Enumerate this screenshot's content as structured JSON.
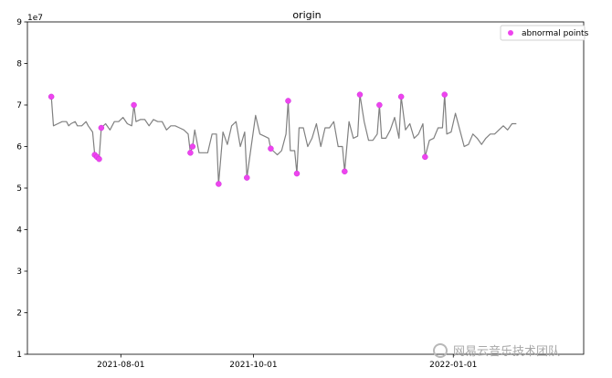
{
  "chart_data": {
    "type": "line",
    "title": "origin",
    "y_exponent_label": "1e7",
    "ylim": [
      1,
      9
    ],
    "yticks": [
      1,
      2,
      3,
      4,
      5,
      6,
      7,
      8,
      9
    ],
    "xlim": [
      "2021-06-19",
      "2022-03-02"
    ],
    "xticks": [
      "2021-08-01",
      "2021-10-01",
      "2022-01-01"
    ],
    "legend": {
      "label": "abnormal points",
      "position": "upper-right"
    },
    "colors": {
      "line": "#808080",
      "marker": "#ee44ee",
      "marker_edge": "#cc33dd"
    },
    "grid": false,
    "series": [
      {
        "values": [
          [
            "2021-06-30",
            7.2
          ],
          [
            "2021-07-01",
            6.5
          ],
          [
            "2021-07-03",
            6.55
          ],
          [
            "2021-07-05",
            6.6
          ],
          [
            "2021-07-07",
            6.6
          ],
          [
            "2021-07-08",
            6.5
          ],
          [
            "2021-07-09",
            6.55
          ],
          [
            "2021-07-11",
            6.6
          ],
          [
            "2021-07-12",
            6.5
          ],
          [
            "2021-07-14",
            6.5
          ],
          [
            "2021-07-16",
            6.6
          ],
          [
            "2021-07-17",
            6.5
          ],
          [
            "2021-07-19",
            6.35
          ],
          [
            "2021-07-20",
            5.8
          ],
          [
            "2021-07-21",
            5.75
          ],
          [
            "2021-07-22",
            5.7
          ],
          [
            "2021-07-23",
            6.45
          ],
          [
            "2021-07-25",
            6.55
          ],
          [
            "2021-07-27",
            6.4
          ],
          [
            "2021-07-29",
            6.6
          ],
          [
            "2021-07-31",
            6.6
          ],
          [
            "2021-08-02",
            6.7
          ],
          [
            "2021-08-04",
            6.55
          ],
          [
            "2021-08-06",
            6.5
          ],
          [
            "2021-08-07",
            7.0
          ],
          [
            "2021-08-08",
            6.6
          ],
          [
            "2021-08-10",
            6.65
          ],
          [
            "2021-08-12",
            6.65
          ],
          [
            "2021-08-14",
            6.5
          ],
          [
            "2021-08-16",
            6.65
          ],
          [
            "2021-08-18",
            6.6
          ],
          [
            "2021-08-20",
            6.6
          ],
          [
            "2021-08-22",
            6.4
          ],
          [
            "2021-08-24",
            6.5
          ],
          [
            "2021-08-26",
            6.5
          ],
          [
            "2021-08-28",
            6.45
          ],
          [
            "2021-08-30",
            6.4
          ],
          [
            "2021-09-01",
            6.3
          ],
          [
            "2021-09-02",
            5.85
          ],
          [
            "2021-09-03",
            6.0
          ],
          [
            "2021-09-04",
            6.4
          ],
          [
            "2021-09-06",
            5.85
          ],
          [
            "2021-09-08",
            5.85
          ],
          [
            "2021-09-10",
            5.85
          ],
          [
            "2021-09-12",
            6.3
          ],
          [
            "2021-09-14",
            6.3
          ],
          [
            "2021-09-15",
            5.1
          ],
          [
            "2021-09-17",
            6.35
          ],
          [
            "2021-09-19",
            6.05
          ],
          [
            "2021-09-21",
            6.5
          ],
          [
            "2021-09-23",
            6.6
          ],
          [
            "2021-09-25",
            6.0
          ],
          [
            "2021-09-27",
            6.35
          ],
          [
            "2021-09-28",
            5.25
          ],
          [
            "2021-09-30",
            6.0
          ],
          [
            "2021-10-02",
            6.75
          ],
          [
            "2021-10-04",
            6.3
          ],
          [
            "2021-10-06",
            6.25
          ],
          [
            "2021-10-08",
            6.2
          ],
          [
            "2021-10-09",
            5.95
          ],
          [
            "2021-10-10",
            5.9
          ],
          [
            "2021-10-12",
            5.8
          ],
          [
            "2021-10-14",
            5.9
          ],
          [
            "2021-10-16",
            6.3
          ],
          [
            "2021-10-17",
            7.1
          ],
          [
            "2021-10-18",
            5.9
          ],
          [
            "2021-10-20",
            5.9
          ],
          [
            "2021-10-21",
            5.35
          ],
          [
            "2021-10-22",
            6.45
          ],
          [
            "2021-10-24",
            6.45
          ],
          [
            "2021-10-26",
            6.0
          ],
          [
            "2021-10-28",
            6.2
          ],
          [
            "2021-10-30",
            6.55
          ],
          [
            "2021-11-01",
            6.0
          ],
          [
            "2021-11-03",
            6.45
          ],
          [
            "2021-11-05",
            6.45
          ],
          [
            "2021-11-07",
            6.6
          ],
          [
            "2021-11-09",
            6.0
          ],
          [
            "2021-11-11",
            6.0
          ],
          [
            "2021-11-12",
            5.4
          ],
          [
            "2021-11-14",
            6.6
          ],
          [
            "2021-11-16",
            6.2
          ],
          [
            "2021-11-18",
            6.25
          ],
          [
            "2021-11-19",
            7.25
          ],
          [
            "2021-11-21",
            6.6
          ],
          [
            "2021-11-23",
            6.15
          ],
          [
            "2021-11-25",
            6.15
          ],
          [
            "2021-11-27",
            6.3
          ],
          [
            "2021-11-28",
            7.0
          ],
          [
            "2021-11-29",
            6.2
          ],
          [
            "2021-12-01",
            6.2
          ],
          [
            "2021-12-03",
            6.4
          ],
          [
            "2021-12-05",
            6.7
          ],
          [
            "2021-12-07",
            6.2
          ],
          [
            "2021-12-08",
            7.2
          ],
          [
            "2021-12-10",
            6.4
          ],
          [
            "2021-12-12",
            6.55
          ],
          [
            "2021-12-14",
            6.2
          ],
          [
            "2021-12-16",
            6.3
          ],
          [
            "2021-12-18",
            6.55
          ],
          [
            "2021-12-19",
            5.75
          ],
          [
            "2021-12-21",
            6.15
          ],
          [
            "2021-12-23",
            6.2
          ],
          [
            "2021-12-25",
            6.45
          ],
          [
            "2021-12-27",
            6.45
          ],
          [
            "2021-12-28",
            7.25
          ],
          [
            "2021-12-29",
            6.3
          ],
          [
            "2021-12-31",
            6.35
          ],
          [
            "2022-01-02",
            6.8
          ],
          [
            "2022-01-04",
            6.4
          ],
          [
            "2022-01-06",
            6.0
          ],
          [
            "2022-01-08",
            6.05
          ],
          [
            "2022-01-10",
            6.3
          ],
          [
            "2022-01-12",
            6.2
          ],
          [
            "2022-01-14",
            6.05
          ],
          [
            "2022-01-16",
            6.2
          ],
          [
            "2022-01-18",
            6.3
          ],
          [
            "2022-01-20",
            6.3
          ],
          [
            "2022-01-22",
            6.4
          ],
          [
            "2022-01-24",
            6.5
          ],
          [
            "2022-01-26",
            6.4
          ],
          [
            "2022-01-28",
            6.55
          ],
          [
            "2022-01-30",
            6.55
          ]
        ]
      },
      {
        "name": "abnormal points",
        "kind": "scatter",
        "values": [
          [
            "2021-06-30",
            7.2
          ],
          [
            "2021-07-20",
            5.8
          ],
          [
            "2021-07-21",
            5.75
          ],
          [
            "2021-07-22",
            5.7
          ],
          [
            "2021-07-23",
            6.45
          ],
          [
            "2021-08-07",
            7.0
          ],
          [
            "2021-09-02",
            5.85
          ],
          [
            "2021-09-03",
            6.0
          ],
          [
            "2021-09-15",
            5.1
          ],
          [
            "2021-09-28",
            5.25
          ],
          [
            "2021-10-09",
            5.95
          ],
          [
            "2021-10-17",
            7.1
          ],
          [
            "2021-10-21",
            5.35
          ],
          [
            "2021-11-12",
            5.4
          ],
          [
            "2021-11-19",
            7.25
          ],
          [
            "2021-11-28",
            7.0
          ],
          [
            "2021-12-08",
            7.2
          ],
          [
            "2021-12-19",
            5.75
          ],
          [
            "2021-12-28",
            7.25
          ]
        ]
      }
    ]
  },
  "watermark": {
    "text": "网易云音乐技术团队"
  }
}
